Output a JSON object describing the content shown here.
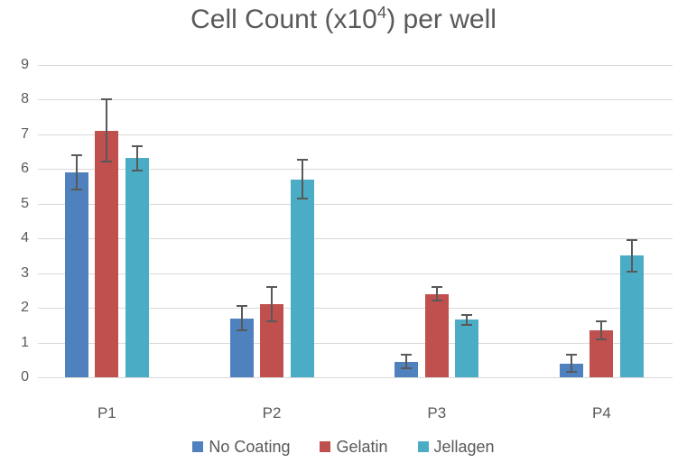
{
  "chart_data": {
    "type": "bar",
    "title": {
      "prefix": "Cell Count (x10",
      "superscript": "4",
      "suffix": ") per well",
      "full_text": "Cell Count (x10^4) per well"
    },
    "categories": [
      "P1",
      "P2",
      "P3",
      "P4"
    ],
    "series": [
      {
        "name": "No Coating",
        "color": "#4E81BD",
        "values": [
          5.9,
          1.7,
          0.45,
          0.4
        ],
        "errors": [
          0.5,
          0.35,
          0.2,
          0.25
        ]
      },
      {
        "name": "Gelatin",
        "color": "#C0504D",
        "values": [
          7.1,
          2.1,
          2.4,
          1.35
        ],
        "errors": [
          0.9,
          0.5,
          0.2,
          0.25
        ]
      },
      {
        "name": "Jellagen",
        "color": "#4BACC6",
        "values": [
          6.3,
          5.7,
          1.65,
          3.5
        ],
        "errors": [
          0.35,
          0.55,
          0.15,
          0.45
        ]
      }
    ],
    "ylim": [
      0,
      9
    ],
    "ytick_step": 1,
    "ytick_labels": [
      "0",
      "1",
      "2",
      "3",
      "4",
      "5",
      "6",
      "7",
      "8",
      "9"
    ],
    "xlabel": "",
    "ylabel": "",
    "grid": true,
    "legend_position": "bottom",
    "colors": {
      "text": "#595959",
      "gridline": "#D9D9D9",
      "error_bar": "#595959",
      "background": "#FFFFFF"
    }
  }
}
